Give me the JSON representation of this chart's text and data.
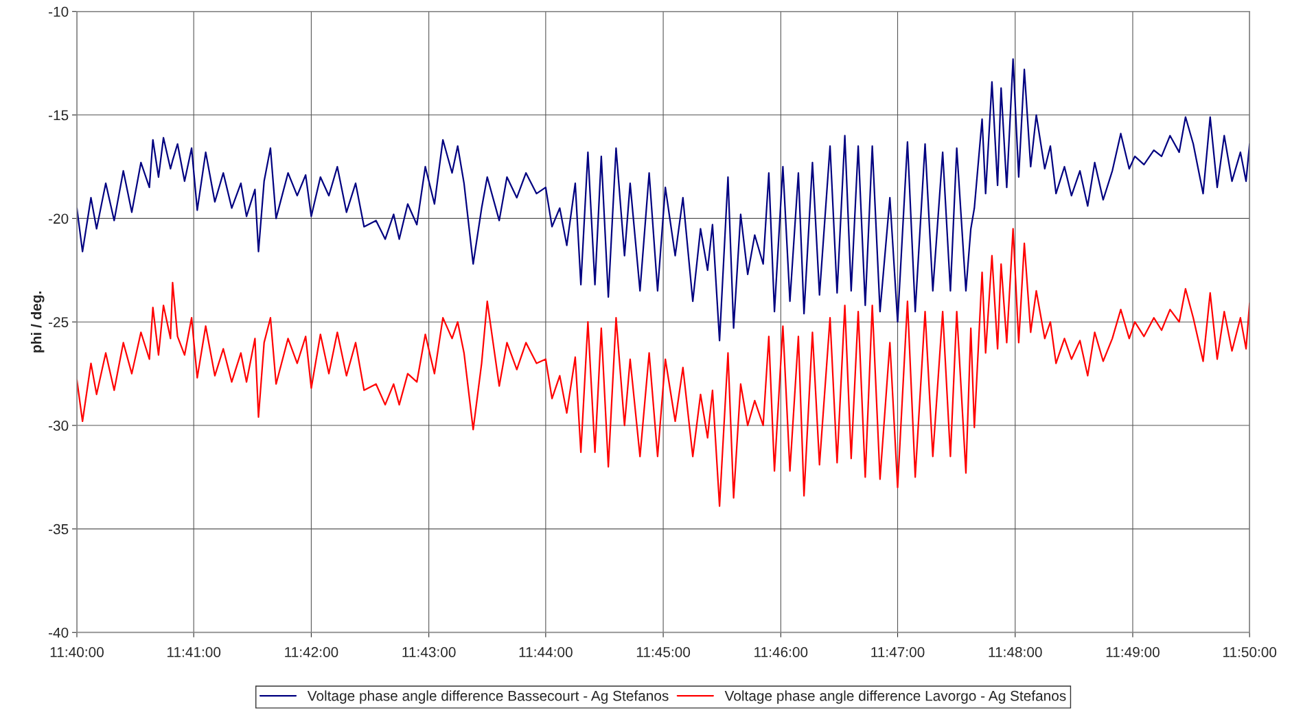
{
  "chart_data": {
    "type": "line",
    "ylabel": "phi / deg.",
    "x": [
      11.6667,
      11.6675,
      11.6687,
      11.6695,
      11.6708,
      11.672,
      11.6733,
      11.6745,
      11.6758,
      11.677,
      11.6775,
      11.6783,
      11.679,
      11.68,
      11.6803,
      11.681,
      11.682,
      11.683,
      11.6838,
      11.685,
      11.6863,
      11.6875,
      11.6887,
      11.69,
      11.6908,
      11.692,
      11.6925,
      11.6933,
      11.6942,
      11.695,
      11.6967,
      11.698,
      11.6992,
      11.7,
      11.7013,
      11.7025,
      11.7037,
      11.705,
      11.7063,
      11.7075,
      11.7092,
      11.7105,
      11.7117,
      11.7125,
      11.7137,
      11.715,
      11.7162,
      11.7175,
      11.7187,
      11.72,
      11.7208,
      11.7217,
      11.723,
      11.7242,
      11.725,
      11.7267,
      11.7278,
      11.7292,
      11.7305,
      11.732,
      11.7333,
      11.7342,
      11.7353,
      11.7363,
      11.7375,
      11.7383,
      11.7393,
      11.7403,
      11.7412,
      11.7422,
      11.7433,
      11.7445,
      11.7453,
      11.7467,
      11.748,
      11.7492,
      11.7503,
      11.7517,
      11.7528,
      11.7542,
      11.7553,
      11.7563,
      11.757,
      11.758,
      11.7592,
      11.76,
      11.761,
      11.762,
      11.763,
      11.7642,
      11.765,
      11.7658,
      11.767,
      11.768,
      11.7692,
      11.77,
      11.7712,
      11.7722,
      11.7737,
      11.7747,
      11.7758,
      11.7767,
      11.7777,
      11.7787,
      11.7797,
      11.7808,
      11.7822,
      11.7833,
      11.7847,
      11.7858,
      11.7872,
      11.7883,
      11.7897,
      11.7908,
      11.7917,
      11.793,
      11.7937,
      11.7942,
      11.7953,
      11.7958,
      11.7967,
      11.7975,
      11.798,
      11.7988,
      11.7997,
      11.8005,
      11.8013,
      11.8022,
      11.803,
      11.8042,
      11.805,
      11.8058,
      11.807,
      11.808,
      11.8092,
      11.8103,
      11.8113,
      11.8125,
      11.8138,
      11.815,
      11.8162,
      11.817,
      11.8183,
      11.8197,
      11.8208,
      11.822,
      11.8233,
      11.8242,
      11.8253,
      11.8267,
      11.8277,
      11.8287,
      11.8297,
      11.8308,
      11.832,
      11.8328,
      11.8333
    ],
    "series": [
      {
        "name": "Voltage phase angle difference Bassecourt - Ag Stefanos",
        "color": "#000080",
        "values": [
          -19.5,
          -21.6,
          -19,
          -20.5,
          -18.3,
          -20.1,
          -17.7,
          -19.7,
          -17.3,
          -18.5,
          -16.2,
          -18.0,
          -16.1,
          -17.6,
          -17.2,
          -16.4,
          -18.2,
          -16.6,
          -19.6,
          -16.8,
          -19.2,
          -17.8,
          -19.5,
          -18.3,
          -19.9,
          -18.6,
          -21.6,
          -18.2,
          -16.6,
          -20.0,
          -17.8,
          -18.9,
          -17.9,
          -19.9,
          -18.0,
          -18.9,
          -17.5,
          -19.7,
          -18.3,
          -20.4,
          -20.1,
          -21.0,
          -19.8,
          -21.0,
          -19.3,
          -20.3,
          -17.5,
          -19.3,
          -16.2,
          -17.8,
          -16.5,
          -18.3,
          -22.2,
          -19.5,
          -18.0,
          -20.1,
          -18.0,
          -19.0,
          -17.8,
          -18.8,
          -18.5,
          -20.4,
          -19.5,
          -21.3,
          -18.3,
          -23.2,
          -16.8,
          -23.2,
          -17.0,
          -23.8,
          -16.6,
          -21.8,
          -18.3,
          -23.5,
          -17.8,
          -23.5,
          -18.5,
          -21.8,
          -19.0,
          -24.0,
          -20.5,
          -22.5,
          -20.3,
          -25.9,
          -18.0,
          -25.3,
          -19.8,
          -22.7,
          -20.8,
          -22.2,
          -17.8,
          -24.5,
          -17.5,
          -24.0,
          -17.8,
          -24.6,
          -17.3,
          -23.7,
          -16.5,
          -23.6,
          -16.0,
          -23.5,
          -16.5,
          -24.2,
          -16.5,
          -24.5,
          -19.0,
          -25.0,
          -16.3,
          -24.5,
          -16.4,
          -23.5,
          -16.8,
          -23.5,
          -16.6,
          -23.5,
          -20.5,
          -19.5,
          -15.2,
          -18.8,
          -13.4,
          -18.4,
          -13.7,
          -18.5,
          -12.3,
          -18.0,
          -12.8,
          -17.5,
          -15.0,
          -17.6,
          -16.5,
          -18.8,
          -17.5,
          -18.9,
          -17.7,
          -19.4,
          -17.3,
          -19.1,
          -17.7,
          -15.9,
          -17.6,
          -17.0,
          -17.4,
          -16.7,
          -17.0,
          -16.0,
          -16.8,
          -15.1,
          -16.4,
          -18.8,
          -15.1,
          -18.5,
          -16.0,
          -18.2,
          -16.8,
          -18.2,
          -16.4
        ]
      },
      {
        "name": "Voltage phase angle difference Lavorgo - Ag Stefanos",
        "color": "#ff0000",
        "values": [
          -27.8,
          -29.8,
          -27.0,
          -28.5,
          -26.5,
          -28.3,
          -26.0,
          -27.5,
          -25.5,
          -26.8,
          -24.3,
          -26.6,
          -24.2,
          -25.8,
          -23.1,
          -25.7,
          -26.6,
          -24.8,
          -27.7,
          -25.2,
          -27.6,
          -26.3,
          -27.9,
          -26.5,
          -27.9,
          -25.8,
          -29.6,
          -26.0,
          -24.8,
          -28.0,
          -25.8,
          -27.0,
          -25.7,
          -28.2,
          -25.6,
          -27.5,
          -25.5,
          -27.6,
          -26.0,
          -28.3,
          -28.0,
          -29.0,
          -28.0,
          -29.0,
          -27.5,
          -27.9,
          -25.6,
          -27.5,
          -24.8,
          -25.8,
          -25.0,
          -26.5,
          -30.2,
          -27.0,
          -24.0,
          -28.1,
          -26.0,
          -27.3,
          -26.0,
          -27.0,
          -26.8,
          -28.7,
          -27.6,
          -29.4,
          -26.7,
          -31.3,
          -25.0,
          -31.3,
          -25.3,
          -32.0,
          -24.8,
          -30.0,
          -26.8,
          -31.5,
          -26.5,
          -31.5,
          -26.8,
          -29.8,
          -27.2,
          -31.5,
          -28.5,
          -30.6,
          -28.3,
          -33.9,
          -26.5,
          -33.5,
          -28.0,
          -30.0,
          -28.8,
          -30.0,
          -25.7,
          -32.2,
          -25.2,
          -32.2,
          -25.7,
          -33.4,
          -25.5,
          -31.9,
          -24.8,
          -31.8,
          -24.2,
          -31.6,
          -24.5,
          -32.5,
          -24.2,
          -32.6,
          -26.0,
          -33.0,
          -24.0,
          -32.5,
          -24.5,
          -31.5,
          -24.5,
          -31.5,
          -24.5,
          -32.3,
          -25.3,
          -30.1,
          -22.6,
          -26.5,
          -21.8,
          -26.3,
          -22.2,
          -26.0,
          -20.5,
          -26.0,
          -21.2,
          -25.5,
          -23.5,
          -25.8,
          -25.0,
          -27.0,
          -25.8,
          -26.8,
          -25.9,
          -27.6,
          -25.5,
          -26.9,
          -25.8,
          -24.4,
          -25.8,
          -25.0,
          -25.7,
          -24.8,
          -25.4,
          -24.4,
          -25.0,
          -23.4,
          -24.8,
          -26.9,
          -23.6,
          -26.8,
          -24.5,
          -26.4,
          -24.8,
          -26.3,
          -24.1
        ]
      }
    ],
    "xlim": [
      11.6667,
      11.8333
    ],
    "xticks": [
      {
        "value": 11.6667,
        "label": "11:40:00"
      },
      {
        "value": 11.6833,
        "label": "11:41:00"
      },
      {
        "value": 11.7,
        "label": "11:42:00"
      },
      {
        "value": 11.7167,
        "label": "11:43:00"
      },
      {
        "value": 11.7333,
        "label": "11:44:00"
      },
      {
        "value": 11.75,
        "label": "11:45:00"
      },
      {
        "value": 11.7667,
        "label": "11:46:00"
      },
      {
        "value": 11.7833,
        "label": "11:47:00"
      },
      {
        "value": 11.8,
        "label": "11:48:00"
      },
      {
        "value": 11.8167,
        "label": "11:49:00"
      },
      {
        "value": 11.8333,
        "label": "11:50:00"
      }
    ],
    "ylim": [
      -40,
      -10
    ],
    "yticks": [
      -40,
      -35,
      -30,
      -25,
      -20,
      -15,
      -10
    ],
    "grid": true,
    "legend": "bottom",
    "line_style": "solid",
    "marker": "none"
  }
}
